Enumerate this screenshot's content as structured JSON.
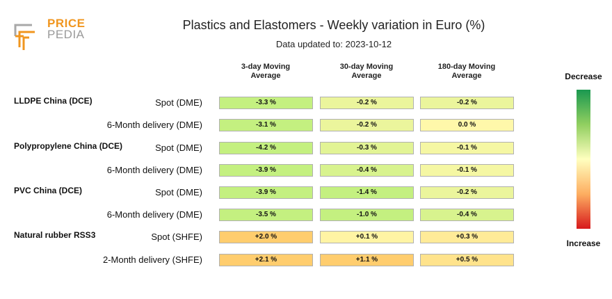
{
  "logo": {
    "line1": "PRICE",
    "line2": "PEDIA"
  },
  "chart_data": {
    "type": "table",
    "title": "Plastics and Elastomers - Weekly variation in Euro (%)",
    "subtitle": "Data updated to: 2023-10-12",
    "columns": [
      "3-day Moving Average",
      "30-day Moving Average",
      "180-day Moving Average"
    ],
    "column_lines": [
      [
        "3-day Moving",
        "Average"
      ],
      [
        "30-day Moving",
        "Average"
      ],
      [
        "180-day Moving",
        "Average"
      ]
    ],
    "rows": [
      {
        "group": "LLDPE China (DCE)",
        "label": "Spot (DME)",
        "values": [
          -3.3,
          -0.2,
          -0.2
        ],
        "text": [
          "-3.3 %",
          "-0.2 %",
          "-0.2 %"
        ]
      },
      {
        "group": "",
        "label": "6-Month delivery (DME)",
        "values": [
          -3.1,
          -0.2,
          0.0
        ],
        "text": [
          "-3.1 %",
          "-0.2 %",
          "0.0 %"
        ]
      },
      {
        "group": "Polypropylene China (DCE)",
        "label": "Spot (DME)",
        "values": [
          -4.2,
          -0.3,
          -0.1
        ],
        "text": [
          "-4.2 %",
          "-0.3 %",
          "-0.1 %"
        ]
      },
      {
        "group": "",
        "label": "6-Month delivery (DME)",
        "values": [
          -3.9,
          -0.4,
          -0.1
        ],
        "text": [
          "-3.9 %",
          "-0.4 %",
          "-0.1 %"
        ]
      },
      {
        "group": "PVC China (DCE)",
        "label": "Spot (DME)",
        "values": [
          -3.9,
          -1.4,
          -0.2
        ],
        "text": [
          "-3.9 %",
          "-1.4 %",
          "-0.2 %"
        ]
      },
      {
        "group": "",
        "label": "6-Month delivery (DME)",
        "values": [
          -3.5,
          -1.0,
          -0.4
        ],
        "text": [
          "-3.5 %",
          "-1.0 %",
          "-0.4 %"
        ]
      },
      {
        "group": "Natural rubber RSS3",
        "label": "Spot (SHFE)",
        "values": [
          2.0,
          0.1,
          0.3
        ],
        "text": [
          "+2.0 %",
          "+0.1 %",
          "+0.3 %"
        ]
      },
      {
        "group": "",
        "label": "2-Month delivery (SHFE)",
        "values": [
          2.1,
          1.1,
          0.5
        ],
        "text": [
          "+2.1 %",
          "+1.1 %",
          "+0.5 %"
        ]
      }
    ],
    "legend": {
      "top": "Decrease",
      "bottom": "Increase"
    }
  }
}
